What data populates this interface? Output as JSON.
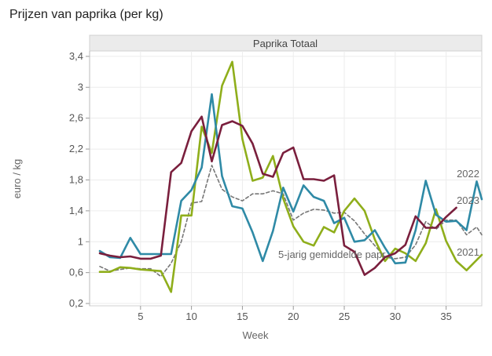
{
  "page_title": "Prijzen van paprika (per kg)",
  "colors": {
    "s2021": "#8fae1b",
    "s2022": "#2f8aa6",
    "s2023": "#7a1f3d",
    "avg": "#777777"
  },
  "chart_data": {
    "type": "line",
    "title": "Prijzen van paprika (per kg)",
    "panel_title": "Paprika Totaal",
    "xlabel": "Week",
    "ylabel": "euro / kg",
    "xlim": [
      0,
      38.5
    ],
    "ylim": [
      0.17,
      3.47
    ],
    "x_ticks": [
      5,
      10,
      15,
      20,
      25,
      30,
      35
    ],
    "x_tick_labels": [
      "5",
      "10",
      "15",
      "20",
      "25",
      "30",
      "35"
    ],
    "y_ticks": [
      0.2,
      0.6,
      1,
      1.4,
      1.8,
      2.2,
      2.6,
      3,
      3.4
    ],
    "y_tick_labels": [
      "0,2",
      "0,6",
      "1",
      "1,4",
      "1,8",
      "2,2",
      "2,6",
      "3",
      "3,4"
    ],
    "series": [
      {
        "name": "2021",
        "label": "2021",
        "color_key": "s2021",
        "dashed": false,
        "x": [
          1,
          2,
          3,
          4,
          5,
          6,
          7,
          8,
          9,
          10,
          11,
          12,
          13,
          14,
          15,
          16,
          17,
          18,
          19,
          20,
          21,
          22,
          23,
          24,
          25,
          26,
          27,
          28,
          29,
          30,
          31,
          32,
          33,
          34,
          35,
          36,
          37,
          38.5
        ],
        "values": [
          0.61,
          0.61,
          0.67,
          0.66,
          0.64,
          0.63,
          0.62,
          0.35,
          1.34,
          1.34,
          2.49,
          2.15,
          3.02,
          3.33,
          2.33,
          1.79,
          1.83,
          2.11,
          1.56,
          1.2,
          1.0,
          0.95,
          1.19,
          1.12,
          1.4,
          1.56,
          1.4,
          1.03,
          0.75,
          0.91,
          0.85,
          0.75,
          0.98,
          1.42,
          1.01,
          0.75,
          0.63,
          0.83
        ]
      },
      {
        "name": "2022",
        "label": "2022",
        "color_key": "s2022",
        "dashed": false,
        "x": [
          1,
          2,
          3,
          4,
          5,
          6,
          7,
          8,
          9,
          10,
          11,
          12,
          13,
          14,
          15,
          16,
          17,
          18,
          19,
          20,
          21,
          22,
          23,
          24,
          25,
          26,
          27,
          28,
          29,
          30,
          31,
          32,
          33,
          34,
          35,
          36,
          37,
          38,
          38.5
        ],
        "values": [
          0.88,
          0.8,
          0.79,
          1.05,
          0.84,
          0.84,
          0.84,
          0.84,
          1.53,
          1.67,
          1.96,
          2.91,
          1.85,
          1.46,
          1.43,
          1.12,
          0.75,
          1.14,
          1.7,
          1.39,
          1.73,
          1.58,
          1.53,
          1.24,
          1.31,
          1.0,
          1.02,
          1.15,
          0.92,
          0.72,
          0.73,
          1.15,
          1.79,
          1.35,
          1.26,
          1.27,
          1.15,
          1.78,
          1.55
        ]
      },
      {
        "name": "2023",
        "label": "2023",
        "color_key": "s2023",
        "dashed": false,
        "x": [
          1,
          2,
          3,
          4,
          5,
          6,
          7,
          8,
          9,
          10,
          11,
          12,
          13,
          14,
          15,
          16,
          17,
          18,
          19,
          20,
          21,
          22,
          23,
          24,
          25,
          26,
          27,
          28,
          29,
          30,
          31,
          32,
          33,
          34,
          35,
          36
        ],
        "values": [
          0.85,
          0.82,
          0.8,
          0.81,
          0.78,
          0.78,
          0.82,
          1.9,
          2.02,
          2.43,
          2.62,
          2.04,
          2.51,
          2.56,
          2.5,
          2.27,
          1.88,
          1.84,
          2.15,
          2.22,
          1.81,
          1.81,
          1.79,
          1.86,
          0.95,
          0.87,
          0.57,
          0.66,
          0.8,
          0.85,
          0.96,
          1.33,
          1.18,
          1.18,
          1.32,
          1.44
        ]
      },
      {
        "name": "5-jarig gemiddelde",
        "label": "5-jarig gemiddelde papr...",
        "color_key": "avg",
        "dashed": true,
        "x": [
          1,
          2,
          3,
          4,
          5,
          6,
          7,
          8,
          9,
          10,
          11,
          12,
          13,
          14,
          15,
          16,
          17,
          18,
          19,
          20,
          21,
          22,
          23,
          24,
          25,
          26,
          27,
          28,
          29,
          30,
          31,
          32,
          33,
          34,
          35,
          36,
          37,
          38,
          38.5
        ],
        "values": [
          0.68,
          0.62,
          0.64,
          0.66,
          0.65,
          0.65,
          0.55,
          0.72,
          1.0,
          1.5,
          1.52,
          1.99,
          1.68,
          1.58,
          1.53,
          1.62,
          1.62,
          1.66,
          1.62,
          1.28,
          1.37,
          1.42,
          1.41,
          1.37,
          1.38,
          1.27,
          1.1,
          0.95,
          0.8,
          0.78,
          0.8,
          0.96,
          1.26,
          1.16,
          1.28,
          1.28,
          1.09,
          1.19,
          1.09
        ]
      }
    ]
  }
}
